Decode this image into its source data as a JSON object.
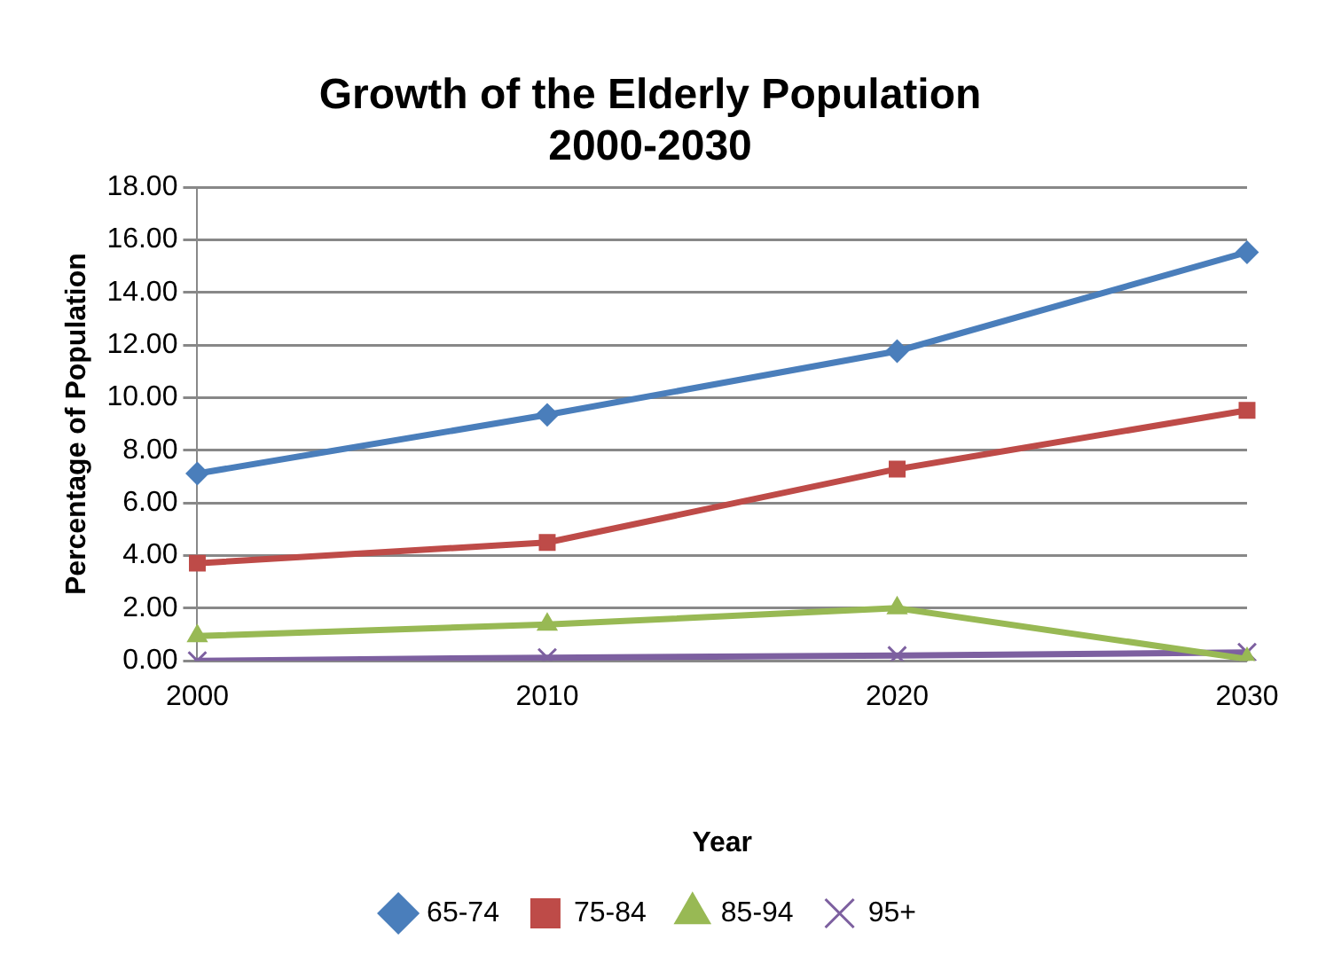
{
  "chart_data": {
    "type": "line",
    "title": "Growth of the Elderly Population\n2000-2030",
    "xlabel": "Year",
    "ylabel": "Percentage of Population",
    "categories": [
      "2000",
      "2010",
      "2020",
      "2030"
    ],
    "series": [
      {
        "name": "65-74",
        "color": "#4a7ebb",
        "marker": "diamond",
        "values": [
          7.12,
          9.35,
          11.77,
          15.53
        ]
      },
      {
        "name": "75-84",
        "color": "#be4b48",
        "marker": "square",
        "values": [
          3.71,
          4.5,
          7.29,
          9.52
        ]
      },
      {
        "name": "85-94",
        "color": "#98b954",
        "marker": "triangle",
        "values": [
          0.94,
          1.38,
          2.0,
          0.07
        ]
      },
      {
        "name": "95+",
        "color": "#7d60a0",
        "marker": "cross",
        "values": [
          0.0,
          0.12,
          0.2,
          0.32
        ]
      }
    ],
    "ylim": [
      0,
      18
    ],
    "yticks": [
      {
        "value": 0,
        "label": "0.00"
      },
      {
        "value": 2,
        "label": "2.00"
      },
      {
        "value": 4,
        "label": "4.00"
      },
      {
        "value": 6,
        "label": "6.00"
      },
      {
        "value": 8,
        "label": "8.00"
      },
      {
        "value": 10,
        "label": "10.00"
      },
      {
        "value": 12,
        "label": "12.00"
      },
      {
        "value": 14,
        "label": "14.00"
      },
      {
        "value": 16,
        "label": "16.00"
      },
      {
        "value": 18,
        "label": "18.00"
      }
    ],
    "grid": "y",
    "legend": "bottom",
    "line_style": "solid"
  }
}
